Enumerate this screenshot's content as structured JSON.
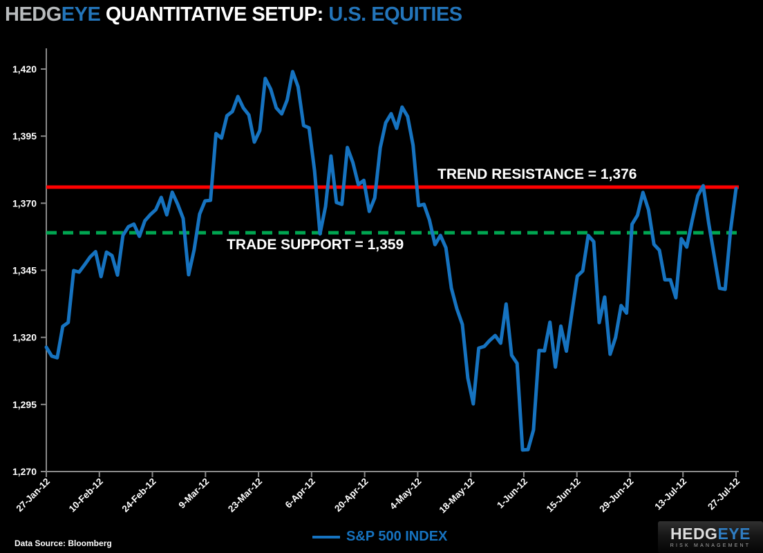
{
  "title": {
    "part_hedg": "HEDG",
    "part_eye": "EYE",
    "part_main": " QUANTITATIVE SETUP: ",
    "part_subject": "U.S. EQUITIES"
  },
  "colors": {
    "background": "#000000",
    "line_blue": "#1673c0",
    "resistance_red": "#ff0000",
    "support_green": "#00a651",
    "axis_gray": "#8a8a8a",
    "text_white": "#ffffff",
    "title_blue": "#2375ba",
    "title_gray": "#b9bcbe"
  },
  "chart_data": {
    "type": "line",
    "title": "HEDGEYE QUANTITATIVE SETUP: U.S. EQUITIES",
    "xlabel": "",
    "ylabel": "",
    "ylim": [
      1270,
      1420
    ],
    "grid": false,
    "legend_position": "bottom-center",
    "y_ticks": [
      {
        "value": 1420,
        "label": "1,420"
      },
      {
        "value": 1395,
        "label": "1,395"
      },
      {
        "value": 1370,
        "label": "1,370"
      },
      {
        "value": 1345,
        "label": "1,345"
      },
      {
        "value": 1320,
        "label": "1,320"
      },
      {
        "value": 1295,
        "label": "1,295"
      },
      {
        "value": 1270,
        "label": "1,270"
      }
    ],
    "x_ticks": [
      "27-Jan-12",
      "10-Feb-12",
      "24-Feb-12",
      "9-Mar-12",
      "23-Mar-12",
      "6-Apr-12",
      "20-Apr-12",
      "4-May-12",
      "18-May-12",
      "1-Jun-12",
      "15-Jun-12",
      "29-Jun-12",
      "13-Jul-12",
      "27-Jul-12"
    ],
    "annotations": [
      {
        "name": "trend_resistance",
        "label": "TREND RESISTANCE = 1,376",
        "value": 1376,
        "style": "solid-red"
      },
      {
        "name": "trade_support",
        "label": "TRADE SUPPORT = 1,359",
        "value": 1359,
        "style": "dashed-green"
      }
    ],
    "series": [
      {
        "name": "S&P 500 INDEX",
        "color": "#1673c0",
        "dates": [
          "27-Jan-12",
          "30-Jan-12",
          "31-Jan-12",
          "1-Feb-12",
          "2-Feb-12",
          "3-Feb-12",
          "6-Feb-12",
          "7-Feb-12",
          "8-Feb-12",
          "9-Feb-12",
          "10-Feb-12",
          "13-Feb-12",
          "14-Feb-12",
          "15-Feb-12",
          "16-Feb-12",
          "17-Feb-12",
          "21-Feb-12",
          "22-Feb-12",
          "23-Feb-12",
          "24-Feb-12",
          "27-Feb-12",
          "28-Feb-12",
          "29-Feb-12",
          "1-Mar-12",
          "2-Mar-12",
          "5-Mar-12",
          "6-Mar-12",
          "7-Mar-12",
          "8-Mar-12",
          "9-Mar-12",
          "12-Mar-12",
          "13-Mar-12",
          "14-Mar-12",
          "15-Mar-12",
          "16-Mar-12",
          "19-Mar-12",
          "20-Mar-12",
          "21-Mar-12",
          "22-Mar-12",
          "23-Mar-12",
          "26-Mar-12",
          "27-Mar-12",
          "28-Mar-12",
          "29-Mar-12",
          "30-Mar-12",
          "2-Apr-12",
          "3-Apr-12",
          "4-Apr-12",
          "5-Apr-12",
          "9-Apr-12",
          "10-Apr-12",
          "11-Apr-12",
          "12-Apr-12",
          "13-Apr-12",
          "16-Apr-12",
          "17-Apr-12",
          "18-Apr-12",
          "19-Apr-12",
          "20-Apr-12",
          "23-Apr-12",
          "24-Apr-12",
          "25-Apr-12",
          "26-Apr-12",
          "27-Apr-12",
          "30-Apr-12",
          "1-May-12",
          "2-May-12",
          "3-May-12",
          "4-May-12",
          "7-May-12",
          "8-May-12",
          "9-May-12",
          "10-May-12",
          "11-May-12",
          "14-May-12",
          "15-May-12",
          "16-May-12",
          "17-May-12",
          "18-May-12",
          "21-May-12",
          "22-May-12",
          "23-May-12",
          "24-May-12",
          "25-May-12",
          "29-May-12",
          "30-May-12",
          "31-May-12",
          "1-Jun-12",
          "4-Jun-12",
          "5-Jun-12",
          "6-Jun-12",
          "7-Jun-12",
          "8-Jun-12",
          "11-Jun-12",
          "12-Jun-12",
          "13-Jun-12",
          "14-Jun-12",
          "15-Jun-12",
          "18-Jun-12",
          "19-Jun-12",
          "20-Jun-12",
          "21-Jun-12",
          "22-Jun-12",
          "25-Jun-12",
          "26-Jun-12",
          "27-Jun-12",
          "28-Jun-12",
          "29-Jun-12",
          "2-Jul-12",
          "3-Jul-12",
          "5-Jul-12",
          "6-Jul-12",
          "9-Jul-12",
          "10-Jul-12",
          "11-Jul-12",
          "12-Jul-12",
          "13-Jul-12",
          "16-Jul-12",
          "17-Jul-12",
          "18-Jul-12",
          "19-Jul-12",
          "20-Jul-12",
          "23-Jul-12",
          "24-Jul-12",
          "25-Jul-12",
          "26-Jul-12",
          "27-Jul-12"
        ],
        "values": [
          1316.33,
          1313.01,
          1312.41,
          1324.09,
          1325.54,
          1344.9,
          1344.33,
          1347.05,
          1349.96,
          1351.95,
          1342.64,
          1351.77,
          1350.5,
          1343.23,
          1358.04,
          1361.23,
          1362.21,
          1357.66,
          1363.46,
          1365.74,
          1367.59,
          1372.18,
          1365.68,
          1374.09,
          1369.63,
          1364.33,
          1343.36,
          1352.63,
          1365.91,
          1370.87,
          1371.09,
          1395.95,
          1394.28,
          1402.6,
          1404.17,
          1409.75,
          1405.52,
          1402.89,
          1392.78,
          1397.11,
          1416.51,
          1412.52,
          1405.54,
          1403.28,
          1408.47,
          1419.04,
          1413.38,
          1398.96,
          1398.08,
          1382.2,
          1358.59,
          1368.71,
          1387.57,
          1370.26,
          1369.57,
          1390.78,
          1385.14,
          1376.92,
          1378.53,
          1366.94,
          1371.97,
          1390.69,
          1399.98,
          1403.36,
          1397.91,
          1405.82,
          1402.31,
          1391.57,
          1369.1,
          1369.58,
          1363.72,
          1354.58,
          1357.99,
          1353.39,
          1338.35,
          1330.66,
          1324.8,
          1304.86,
          1295.22,
          1315.99,
          1316.63,
          1318.86,
          1320.68,
          1317.82,
          1332.42,
          1313.32,
          1310.33,
          1278.04,
          1278.18,
          1285.5,
          1315.13,
          1314.99,
          1325.66,
          1308.93,
          1324.18,
          1314.88,
          1329.1,
          1342.84,
          1344.78,
          1357.98,
          1355.69,
          1325.51,
          1335.02,
          1313.72,
          1319.99,
          1331.85,
          1329.04,
          1362.16,
          1365.51,
          1374.02,
          1367.58,
          1354.68,
          1352.46,
          1341.47,
          1341.45,
          1334.76,
          1356.78,
          1353.64,
          1363.67,
          1372.78,
          1376.51,
          1362.66,
          1350.52,
          1338.31,
          1337.89,
          1360.02,
          1375.5
        ]
      }
    ]
  },
  "footer": {
    "data_source": "Data Source: Bloomberg"
  },
  "logo": {
    "brand_hedg": "HEDG",
    "brand_eye": "EYE",
    "tagline": "RISK MANAGEMENT"
  }
}
